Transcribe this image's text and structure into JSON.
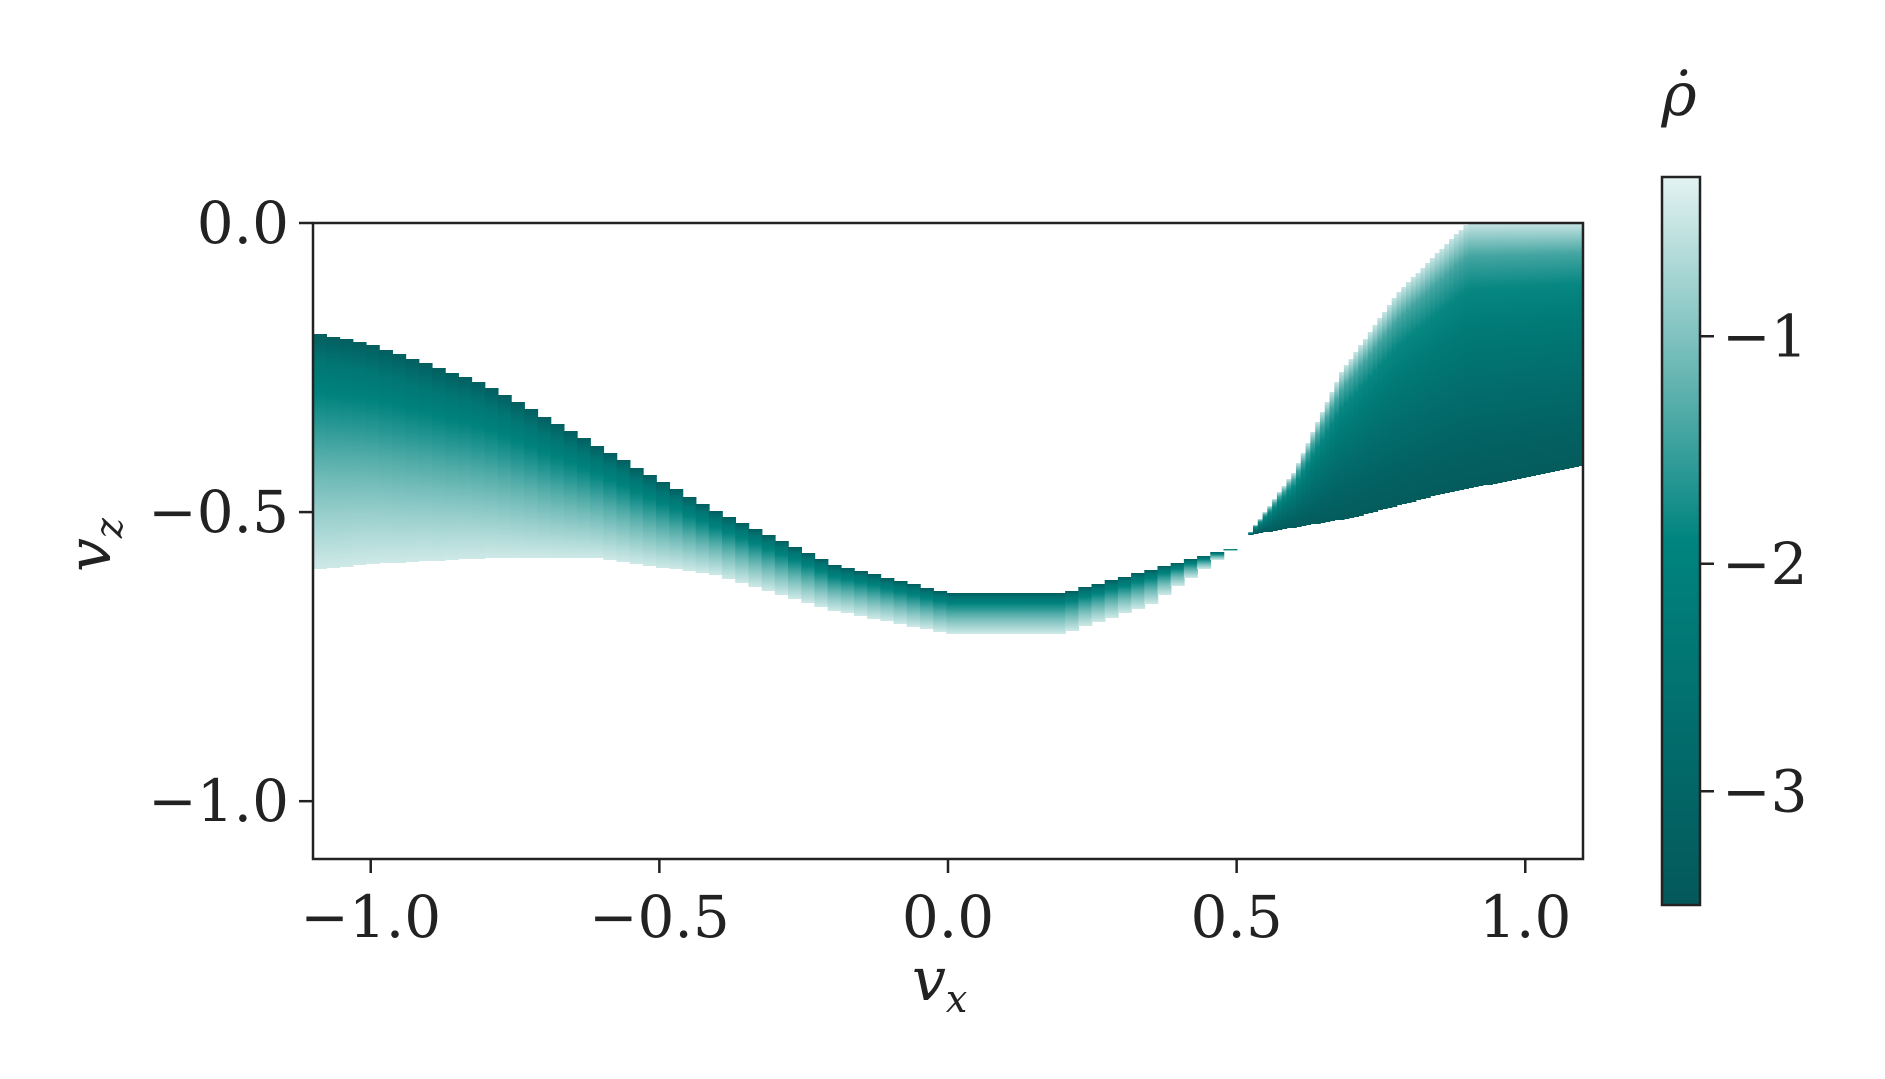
{
  "chart_data": {
    "type": "heatmap",
    "title": "",
    "xlabel": "v",
    "xlabel_sub": "x",
    "ylabel": "v",
    "ylabel_sub": "z",
    "xlim": [
      -1.1,
      1.1
    ],
    "ylim": [
      -1.1,
      0.0
    ],
    "xticks": [
      -1.0,
      -0.5,
      0.0,
      0.5,
      1.0
    ],
    "xtick_labels": [
      "−1.0",
      "−0.5",
      "0.0",
      "0.5",
      "1.0"
    ],
    "yticks": [
      0.0,
      -0.5,
      -1.0
    ],
    "ytick_labels": [
      "0.0",
      "−0.5",
      "−1.0"
    ],
    "grid": false,
    "colorbar": {
      "label": "ρ̇",
      "range": [
        -3.5,
        -0.3
      ],
      "ticks": [
        -1,
        -2,
        -3
      ],
      "tick_labels": [
        "−1",
        "−2",
        "−3"
      ],
      "colors": {
        "low": "#04585a",
        "mid": "#00847f",
        "high": "#e3f3f2"
      }
    },
    "regions": [
      {
        "name": "left-band",
        "x_range": [
          -1.1,
          0.5
        ],
        "upper_boundary": [
          [
            -1.1,
            -0.19
          ],
          [
            -1.0,
            -0.21
          ],
          [
            -0.8,
            -0.28
          ],
          [
            -0.6,
            -0.39
          ],
          [
            -0.4,
            -0.5
          ],
          [
            -0.2,
            -0.59
          ],
          [
            0.0,
            -0.64
          ],
          [
            0.2,
            -0.64
          ],
          [
            0.35,
            -0.6
          ],
          [
            0.5,
            -0.56
          ]
        ],
        "lower_boundary": [
          [
            -1.1,
            -0.6
          ],
          [
            -1.0,
            -0.59
          ],
          [
            -0.8,
            -0.58
          ],
          [
            -0.6,
            -0.58
          ],
          [
            -0.4,
            -0.61
          ],
          [
            -0.2,
            -0.67
          ],
          [
            0.0,
            -0.71
          ],
          [
            0.2,
            -0.71
          ],
          [
            0.35,
            -0.66
          ],
          [
            0.5,
            -0.56
          ]
        ],
        "value_at_upper": -3.3,
        "value_at_lower": -0.45
      },
      {
        "name": "right-band",
        "x_range": [
          0.52,
          1.1
        ],
        "upper_boundary": [
          [
            0.52,
            -0.54
          ],
          [
            0.6,
            -0.43
          ],
          [
            0.68,
            -0.26
          ],
          [
            0.78,
            -0.12
          ],
          [
            0.9,
            0.0
          ],
          [
            1.1,
            0.0
          ]
        ],
        "lower_boundary": [
          [
            0.52,
            -0.54
          ],
          [
            0.7,
            -0.51
          ],
          [
            0.85,
            -0.47
          ],
          [
            1.0,
            -0.44
          ],
          [
            1.1,
            -0.42
          ]
        ],
        "value_at_upper": -0.5,
        "value_at_lower": -3.4
      }
    ]
  }
}
